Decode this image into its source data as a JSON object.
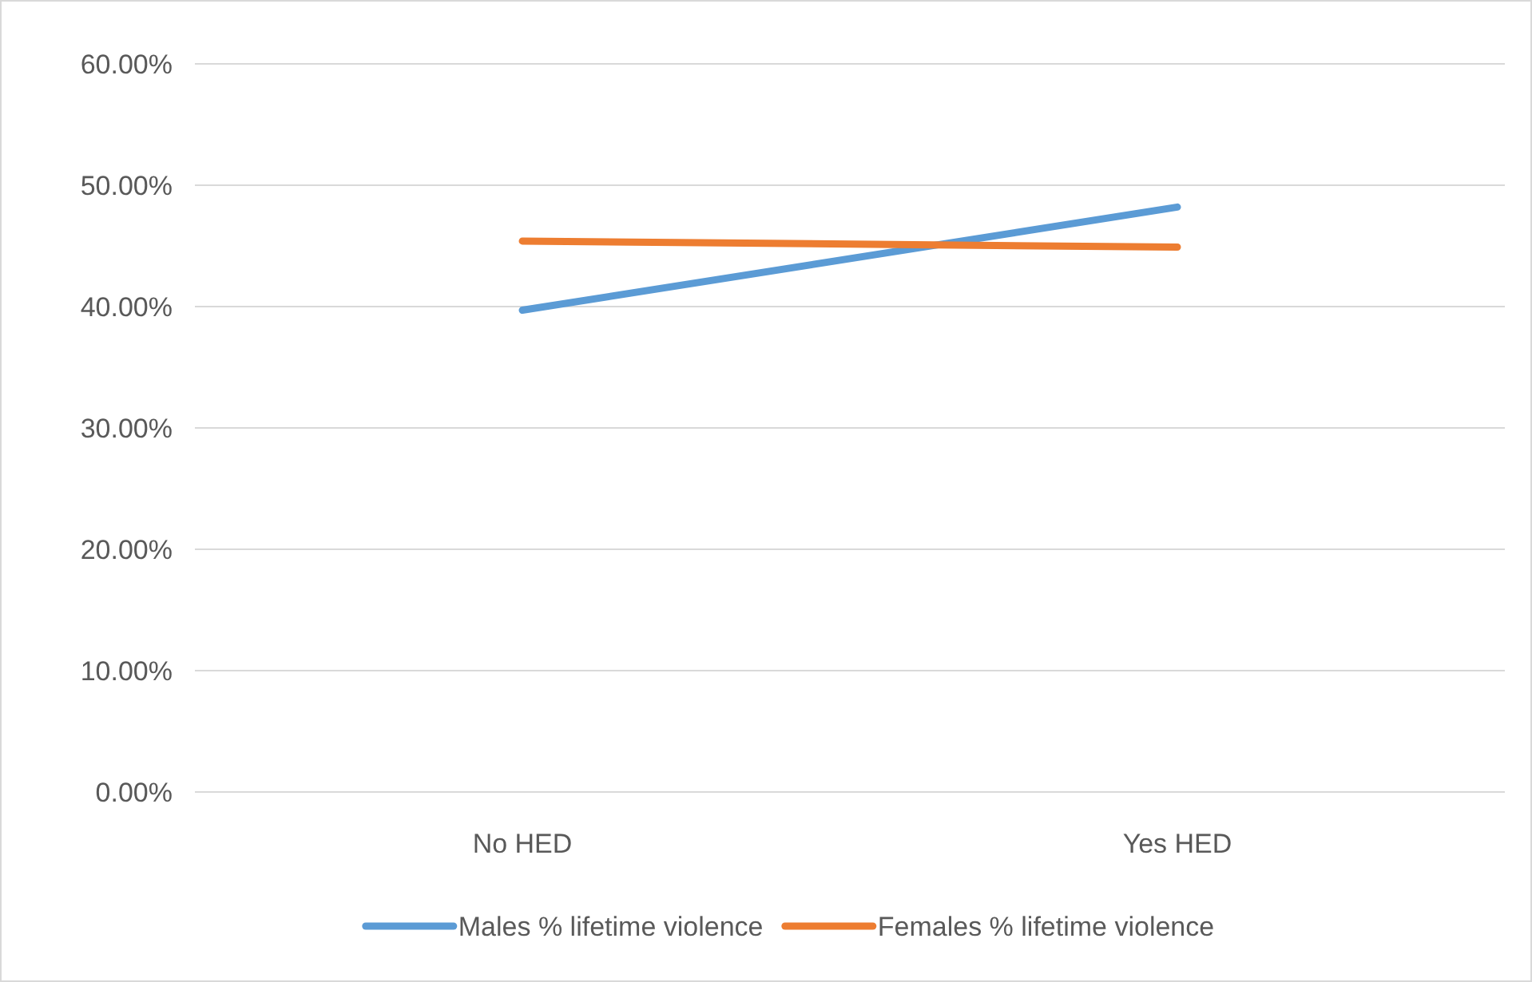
{
  "chart_data": {
    "type": "line",
    "categories": [
      "No HED",
      "Yes HED"
    ],
    "series": [
      {
        "name": "Males % lifetime violence",
        "color": "#5b9bd5",
        "values": [
          39.7,
          48.2
        ]
      },
      {
        "name": "Females % lifetime violence",
        "color": "#ed7d31",
        "values": [
          45.4,
          44.9
        ]
      }
    ],
    "ylim": [
      0,
      60
    ],
    "yticks": [
      {
        "value": 0,
        "label": "0.00%"
      },
      {
        "value": 10,
        "label": "10.00%"
      },
      {
        "value": 20,
        "label": "20.00%"
      },
      {
        "value": 30,
        "label": "30.00%"
      },
      {
        "value": 40,
        "label": "40.00%"
      },
      {
        "value": 50,
        "label": "50.00%"
      },
      {
        "value": 60,
        "label": "60.00%"
      }
    ],
    "grid": "y",
    "legend": "bottom",
    "marker": "none",
    "line_style": "solid"
  }
}
